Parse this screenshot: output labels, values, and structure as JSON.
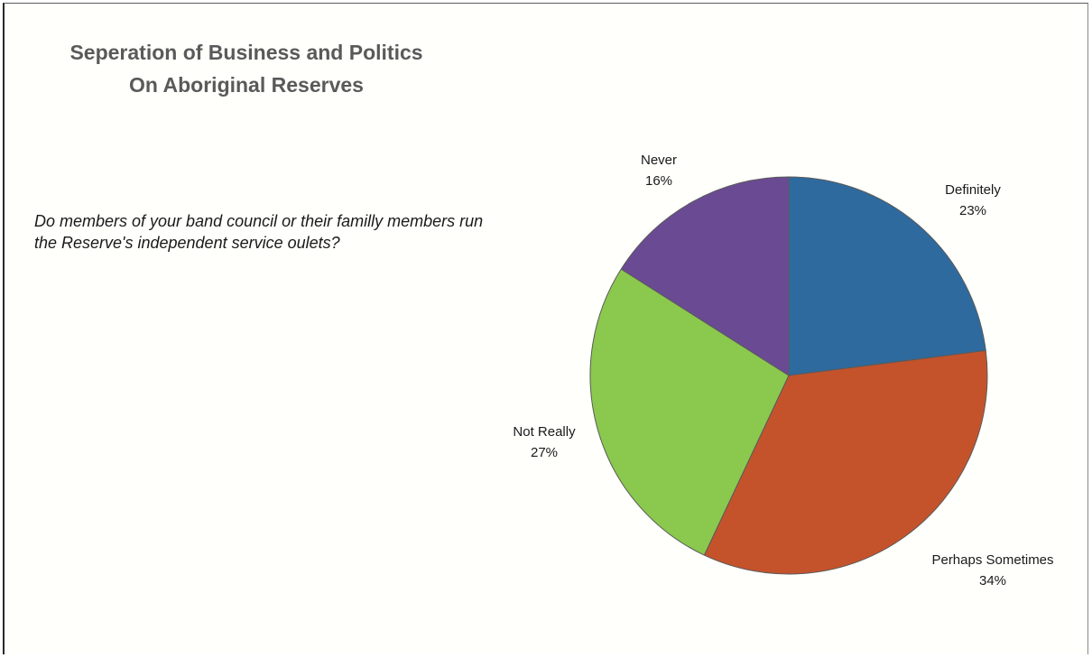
{
  "title_lines": [
    "Seperation of Business and Politics",
    "On Aboriginal Reserves"
  ],
  "question": "Do members of your band council or their familly members run the Reserve's independent service oulets?",
  "chart_data": {
    "type": "pie",
    "title": "",
    "start_angle_deg": 0,
    "direction": "clockwise",
    "slices": [
      {
        "label": "Definitely",
        "value": 23,
        "value_label": "23%",
        "color": "#2e6a9e"
      },
      {
        "label": "Perhaps Sometimes",
        "value": 34,
        "value_label": "34%",
        "color": "#c4532c"
      },
      {
        "label": "Not Really",
        "value": 27,
        "value_label": "27%",
        "color": "#8bc84e"
      },
      {
        "label": "Never",
        "value": 16,
        "value_label": "16%",
        "color": "#6a4a93"
      }
    ]
  }
}
